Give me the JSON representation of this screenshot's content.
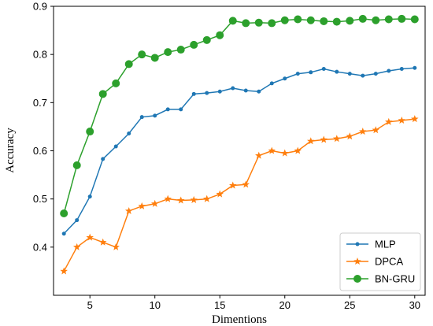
{
  "chart_data": {
    "type": "line",
    "title": "",
    "xlabel": "Dimentions",
    "ylabel": "Accuracy",
    "xlim": [
      2.2,
      30.8
    ],
    "ylim": [
      0.3,
      0.9
    ],
    "xticks": [
      5,
      10,
      15,
      20,
      25,
      30
    ],
    "yticks": [
      0.4,
      0.5,
      0.6,
      0.7,
      0.8,
      0.9
    ],
    "xtick_labels": [
      "5",
      "10",
      "15",
      "20",
      "25",
      "30"
    ],
    "ytick_labels": [
      "0.4",
      "0.5",
      "0.6",
      "0.7",
      "0.8",
      "0.9"
    ],
    "grid": false,
    "legend_position": "bottom-right",
    "x": [
      3,
      4,
      5,
      6,
      7,
      8,
      9,
      10,
      11,
      12,
      13,
      14,
      15,
      16,
      17,
      18,
      19,
      20,
      21,
      22,
      23,
      24,
      25,
      26,
      27,
      28,
      29,
      30
    ],
    "series": [
      {
        "name": "MLP",
        "color": "#1f77b4",
        "marker": "circle-small",
        "values": [
          0.428,
          0.456,
          0.505,
          0.583,
          0.609,
          0.636,
          0.67,
          0.673,
          0.686,
          0.686,
          0.718,
          0.72,
          0.723,
          0.73,
          0.725,
          0.723,
          0.74,
          0.75,
          0.76,
          0.763,
          0.77,
          0.764,
          0.76,
          0.756,
          0.76,
          0.766,
          0.77,
          0.772
        ]
      },
      {
        "name": "DPCA",
        "color": "#ff7f0e",
        "marker": "star",
        "values": [
          0.35,
          0.4,
          0.42,
          0.41,
          0.4,
          0.475,
          0.485,
          0.49,
          0.5,
          0.497,
          0.498,
          0.5,
          0.51,
          0.528,
          0.53,
          0.59,
          0.6,
          0.595,
          0.6,
          0.62,
          0.623,
          0.625,
          0.63,
          0.64,
          0.643,
          0.66,
          0.663,
          0.666
        ]
      },
      {
        "name": "BN-GRU",
        "color": "#2ca02c",
        "marker": "circle-large",
        "values": [
          0.47,
          0.57,
          0.64,
          0.718,
          0.74,
          0.78,
          0.8,
          0.793,
          0.805,
          0.81,
          0.82,
          0.83,
          0.84,
          0.87,
          0.865,
          0.866,
          0.865,
          0.871,
          0.873,
          0.871,
          0.869,
          0.868,
          0.87,
          0.874,
          0.871,
          0.873,
          0.874,
          0.873
        ]
      }
    ]
  }
}
